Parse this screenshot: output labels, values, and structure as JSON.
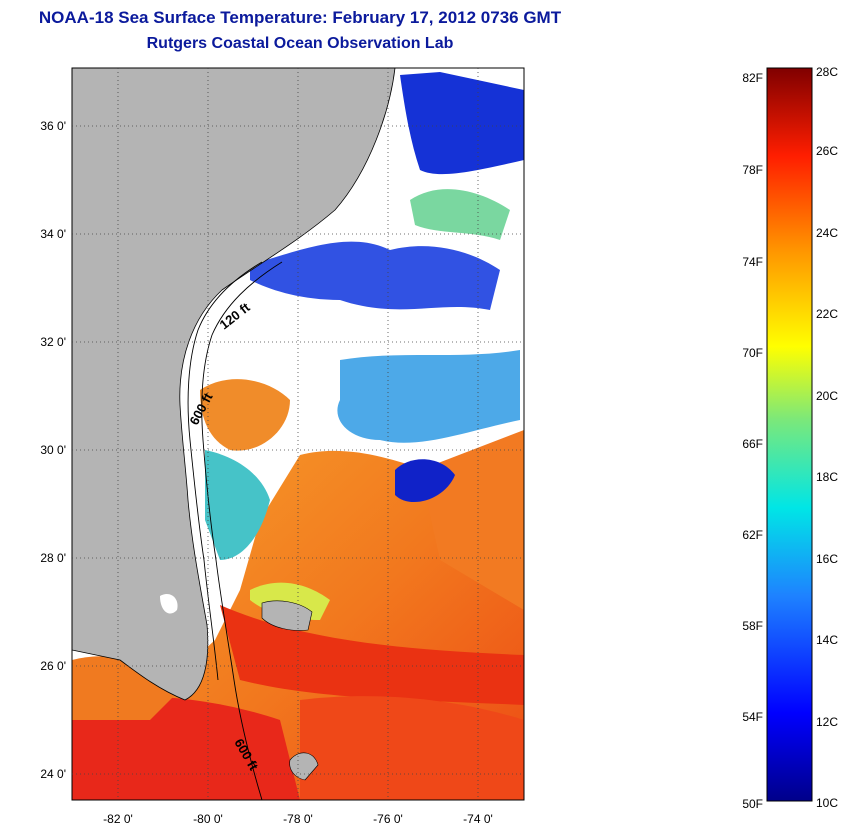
{
  "header": {
    "title": "NOAA-18 Sea Surface Temperature:  February 17, 2012 0736 GMT",
    "subtitle": "Rutgers Coastal Ocean Observation Lab"
  },
  "map": {
    "lat_ticks": [
      "36 0'",
      "34 0'",
      "32 0'",
      "30 0'",
      "28 0'",
      "26 0'",
      "24 0'"
    ],
    "lon_ticks": [
      "-82 0'",
      "-80 0'",
      "-78 0'",
      "-76 0'",
      "-74 0'"
    ],
    "contour_labels": [
      "120 ft",
      "600 ft",
      "600 ft"
    ],
    "colors": {
      "land": "#b4b4b4",
      "cloud": "#ffffff"
    }
  },
  "colorbar": {
    "fahrenheit": [
      "82F",
      "78F",
      "74F",
      "70F",
      "66F",
      "62F",
      "58F",
      "54F",
      "50F"
    ],
    "celsius": [
      "28C",
      "26C",
      "24C",
      "22C",
      "20C",
      "18C",
      "16C",
      "14C",
      "12C",
      "10C"
    ]
  }
}
